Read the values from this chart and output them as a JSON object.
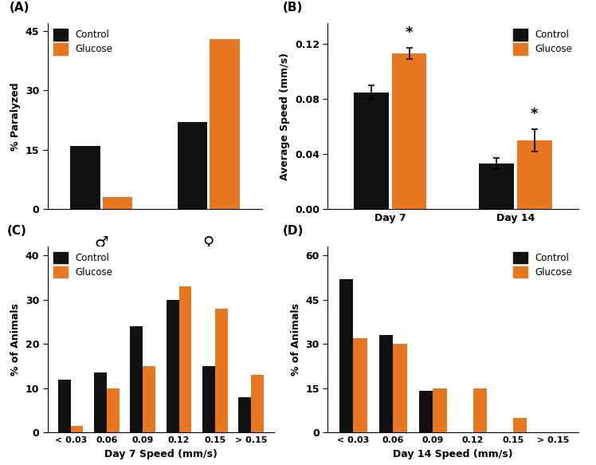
{
  "panel_A": {
    "title": "(A)",
    "ylabel": "% Paralyzed",
    "yticks": [
      0,
      15,
      30,
      45
    ],
    "ylim": [
      0,
      47
    ],
    "control_vals": [
      16,
      22
    ],
    "glucose_vals": [
      3,
      43
    ]
  },
  "panel_B": {
    "title": "(B)",
    "ylabel": "Average Speed (mm/s)",
    "yticks": [
      0.0,
      0.04,
      0.08,
      0.12
    ],
    "ytick_labels": [
      "0.00",
      "0.04",
      "0.08",
      "0.12"
    ],
    "ylim": [
      0,
      0.135
    ],
    "groups": [
      "Day 7",
      "Day 14"
    ],
    "control_vals": [
      0.085,
      0.033
    ],
    "glucose_vals": [
      0.113,
      0.05
    ],
    "control_err": [
      0.005,
      0.004
    ],
    "glucose_err": [
      0.004,
      0.008
    ]
  },
  "panel_C": {
    "title": "(C)",
    "ylabel": "% of Animals",
    "xlabel": "Day 7 Speed (mm/s)",
    "yticks": [
      0,
      10,
      20,
      30,
      40
    ],
    "ylim": [
      0,
      42
    ],
    "categories": [
      "< 0.03",
      "0.06",
      "0.09",
      "0.12",
      "0.15",
      "> 0.15"
    ],
    "control_vals": [
      12,
      13.5,
      24,
      30,
      15,
      8
    ],
    "glucose_vals": [
      1.5,
      10,
      15,
      33,
      28,
      13
    ]
  },
  "panel_D": {
    "title": "(D)",
    "ylabel": "% of Animals",
    "xlabel": "Day 14 Speed (mm/s)",
    "yticks": [
      0,
      15,
      30,
      45,
      60
    ],
    "ylim": [
      0,
      63
    ],
    "categories": [
      "< 0.03",
      "0.06",
      "0.09",
      "0.12",
      "0.15",
      "> 0.15"
    ],
    "control_vals": [
      52,
      33,
      14,
      0,
      0,
      0
    ],
    "glucose_vals": [
      32,
      30,
      15,
      15,
      5,
      0
    ]
  },
  "colors": {
    "control": "#111111",
    "glucose": "#E87722"
  },
  "legend_labels": [
    "Control",
    "Glucose"
  ]
}
